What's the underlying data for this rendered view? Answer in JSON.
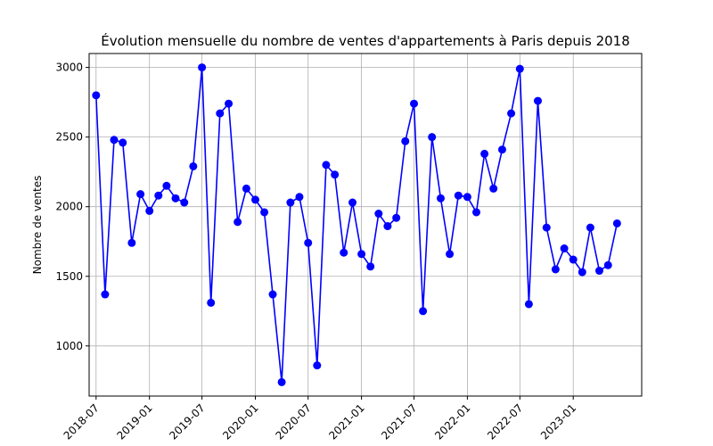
{
  "chart_data": {
    "type": "line",
    "title": "Évolution mensuelle du nombre de ventes d'appartements à Paris depuis 2018",
    "xlabel": "",
    "ylabel": "Nombre de ventes",
    "ylim": [
      640,
      3100
    ],
    "xlim": [
      "2018-06-07",
      "2023-08-25"
    ],
    "grid": true,
    "color": "#0000ff",
    "x_ticks": [
      "2018-07",
      "2019-01",
      "2019-07",
      "2020-01",
      "2020-07",
      "2021-01",
      "2021-07",
      "2022-01",
      "2022-07",
      "2023-01"
    ],
    "y_ticks": [
      1000,
      1500,
      2000,
      2500,
      3000
    ],
    "series": [
      {
        "x": [
          "2018-07",
          "2018-08",
          "2018-09",
          "2018-10",
          "2018-11",
          "2018-12",
          "2019-01",
          "2019-02",
          "2019-03",
          "2019-04",
          "2019-05",
          "2019-06",
          "2019-07",
          "2019-08",
          "2019-09",
          "2019-10",
          "2019-11",
          "2019-12",
          "2020-01",
          "2020-02",
          "2020-03",
          "2020-04",
          "2020-05",
          "2020-06",
          "2020-07",
          "2020-08",
          "2020-09",
          "2020-10",
          "2020-11",
          "2020-12",
          "2021-01",
          "2021-02",
          "2021-03",
          "2021-04",
          "2021-05",
          "2021-06",
          "2021-07",
          "2021-08",
          "2021-09",
          "2021-10",
          "2021-11",
          "2021-12",
          "2022-01",
          "2022-02",
          "2022-03",
          "2022-04",
          "2022-05",
          "2022-06",
          "2022-07",
          "2022-08",
          "2022-09",
          "2022-10",
          "2022-11",
          "2022-12",
          "2023-01",
          "2023-02",
          "2023-03",
          "2023-04",
          "2023-05",
          "2023-06"
        ],
        "values": [
          2800,
          1370,
          2480,
          2460,
          1740,
          2090,
          1970,
          2080,
          2150,
          2060,
          2030,
          2290,
          3000,
          1310,
          2670,
          2740,
          1890,
          2130,
          2050,
          1960,
          1370,
          740,
          2030,
          2070,
          1740,
          860,
          2300,
          2230,
          1670,
          2030,
          1660,
          1570,
          1950,
          1860,
          1920,
          2470,
          2740,
          1250,
          2500,
          2060,
          1660,
          2080,
          2070,
          1960,
          2380,
          2130,
          2410,
          2670,
          2990,
          1300,
          2760,
          1850,
          1550,
          1700,
          1620,
          1530,
          1850,
          1540,
          1580,
          1880
        ]
      }
    ]
  }
}
